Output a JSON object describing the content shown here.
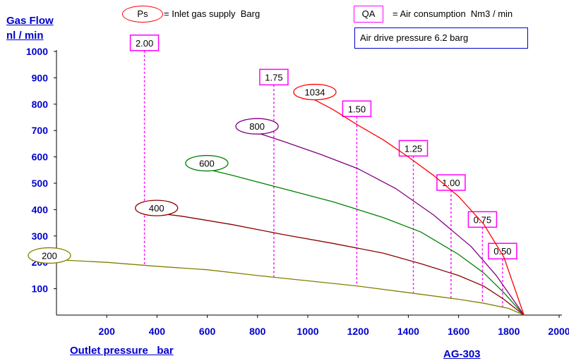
{
  "chart_data": {
    "type": "line",
    "ylabel_line1": "Gas Flow",
    "ylabel_line2": "nl / min",
    "xlabel": "Outlet pressure   bar",
    "model": "AG-303",
    "xlim": [
      0,
      2000
    ],
    "ylim": [
      0,
      1000
    ],
    "xticks": [
      200,
      400,
      600,
      800,
      1000,
      1200,
      1400,
      1600,
      1800,
      2000
    ],
    "yticks": [
      100,
      200,
      300,
      400,
      500,
      600,
      700,
      800,
      900,
      1000
    ],
    "legend": {
      "ps_symbol": "Ps",
      "ps_text": "= Inlet gas supply  Barg",
      "qa_symbol": "QA",
      "qa_text": "= Air consumption  Nm3 / min",
      "drive_pressure": "Air drive pressure  6.2 barg"
    },
    "series": [
      {
        "name": "200",
        "color": "#808000",
        "points": [
          [
            0,
            210
          ],
          [
            200,
            200
          ],
          [
            400,
            185
          ],
          [
            600,
            172
          ],
          [
            800,
            150
          ],
          [
            1000,
            130
          ],
          [
            1200,
            110
          ],
          [
            1400,
            85
          ],
          [
            1600,
            60
          ],
          [
            1700,
            45
          ],
          [
            1800,
            25
          ],
          [
            1860,
            0
          ]
        ]
      },
      {
        "name": "400",
        "color": "#8b0000",
        "points": [
          [
            370,
            390
          ],
          [
            500,
            375
          ],
          [
            700,
            343
          ],
          [
            900,
            306
          ],
          [
            1100,
            272
          ],
          [
            1300,
            235
          ],
          [
            1450,
            195
          ],
          [
            1600,
            150
          ],
          [
            1700,
            110
          ],
          [
            1780,
            60
          ],
          [
            1860,
            0
          ]
        ]
      },
      {
        "name": "600",
        "color": "#008000",
        "points": [
          [
            570,
            560
          ],
          [
            700,
            530
          ],
          [
            900,
            480
          ],
          [
            1100,
            430
          ],
          [
            1300,
            370
          ],
          [
            1450,
            315
          ],
          [
            1600,
            230
          ],
          [
            1700,
            160
          ],
          [
            1780,
            85
          ],
          [
            1860,
            0
          ]
        ]
      },
      {
        "name": "800",
        "color": "#800080",
        "points": [
          [
            770,
            700
          ],
          [
            900,
            660
          ],
          [
            1050,
            610
          ],
          [
            1200,
            555
          ],
          [
            1350,
            480
          ],
          [
            1500,
            380
          ],
          [
            1650,
            260
          ],
          [
            1750,
            150
          ],
          [
            1860,
            0
          ]
        ]
      },
      {
        "name": "1034",
        "color": "#ff0000",
        "points": [
          [
            1000,
            830
          ],
          [
            1100,
            780
          ],
          [
            1200,
            720
          ],
          [
            1300,
            665
          ],
          [
            1400,
            600
          ],
          [
            1500,
            530
          ],
          [
            1600,
            450
          ],
          [
            1700,
            345
          ],
          [
            1780,
            220
          ],
          [
            1860,
            0
          ]
        ]
      }
    ],
    "air_consumption": [
      {
        "label": "2.00",
        "x": 350,
        "y_top": 1030,
        "y_bottom": 185
      },
      {
        "label": "1.75",
        "x": 865,
        "y_top": 900,
        "y_bottom": 145
      },
      {
        "label": "1.50",
        "x": 1195,
        "y_top": 780,
        "y_bottom": 110
      },
      {
        "label": "1.25",
        "x": 1420,
        "y_top": 630,
        "y_bottom": 85
      },
      {
        "label": "1.00",
        "x": 1570,
        "y_top": 500,
        "y_bottom": 60
      },
      {
        "label": "0.75",
        "x": 1695,
        "y_top": 360,
        "y_bottom": 45
      },
      {
        "label": "0.50",
        "x": 1775,
        "y_top": 240,
        "y_bottom": 30
      }
    ]
  }
}
